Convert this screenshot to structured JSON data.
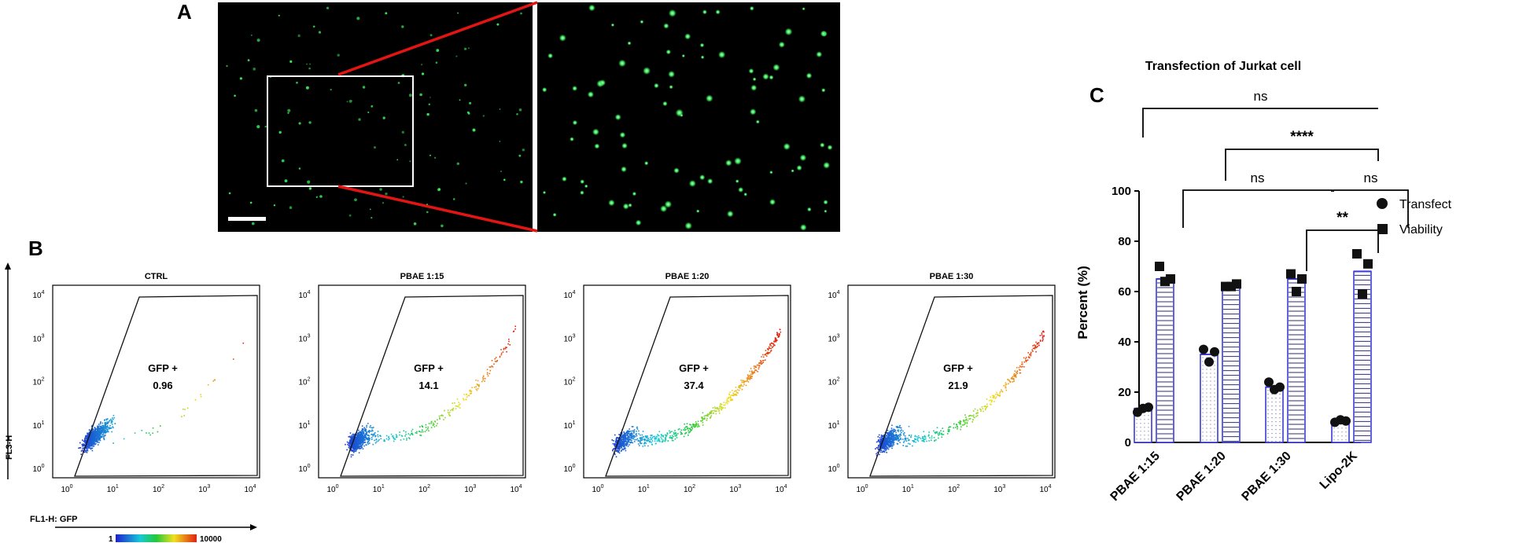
{
  "panels": {
    "a": "A",
    "b": "B",
    "c": "C"
  },
  "colors": {
    "gfp": "#39e85a",
    "zoom_line": "#e31414",
    "bar_edge": "#3b3bd6",
    "dot": "#111111"
  },
  "flow": {
    "plots": [
      {
        "title": "CTRL",
        "gate_label": "GFP +",
        "gate_value": "0.96",
        "spread": 0.05
      },
      {
        "title": "PBAE 1:15",
        "gate_label": "GFP +",
        "gate_value": "14.1",
        "spread": 0.45
      },
      {
        "title": "PBAE 1:20",
        "gate_label": "GFP +",
        "gate_value": "37.4",
        "spread": 1.0
      },
      {
        "title": "PBAE 1:30",
        "gate_label": "GFP +",
        "gate_value": "21.9",
        "spread": 0.7
      }
    ],
    "x_axis_label": "FL1-H: GFP",
    "y_axis_label": "FL3-H",
    "colorbar": {
      "min": "1",
      "max": "10000"
    }
  },
  "chart_data": {
    "type": "bar",
    "title": "Transfection of Jurkat cell",
    "ylabel": "Percent (%)",
    "ylim": [
      0,
      100
    ],
    "yticks": [
      0,
      20,
      40,
      60,
      80,
      100
    ],
    "categories": [
      "PBAE 1:15",
      "PBAE 1:20",
      "PBAE 1:30",
      "Lipo-2K"
    ],
    "series": [
      {
        "name": "Transfect",
        "values": [
          13.5,
          35,
          22,
          8.5
        ],
        "points": [
          [
            12,
            13.5,
            14
          ],
          [
            37,
            32,
            36
          ],
          [
            24,
            21,
            22
          ],
          [
            8,
            9,
            8.5
          ]
        ]
      },
      {
        "name": "Viability",
        "values": [
          65,
          62,
          65,
          68
        ],
        "points": [
          [
            70,
            64,
            65
          ],
          [
            62,
            62,
            63
          ],
          [
            67,
            60,
            65
          ],
          [
            75,
            59,
            71
          ]
        ]
      }
    ],
    "significance": [
      {
        "label": "ns",
        "level": 1
      },
      {
        "label": "****",
        "level": 2
      },
      {
        "label": "ns",
        "level": 3
      },
      {
        "label": "ns",
        "level": 3
      },
      {
        "label": "**",
        "level": 4
      }
    ]
  }
}
